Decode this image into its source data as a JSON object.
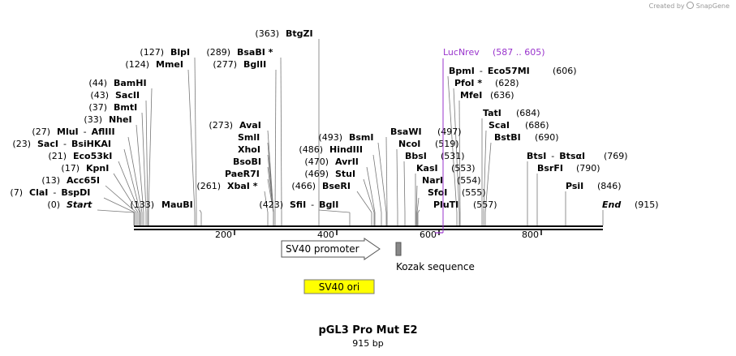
{
  "credit": {
    "prefix": "Created by",
    "brand": "SnapGene"
  },
  "title": "pGL3 Pro Mut E2",
  "subtitle": "915 bp",
  "ticks": [
    "200",
    "400",
    "600",
    "800"
  ],
  "sites": [
    {
      "pos": "(0)",
      "name": "Start",
      "italic": true
    },
    {
      "pos": "(7)",
      "name": "ClaI",
      "alt": "BspDI"
    },
    {
      "pos": "(13)",
      "name": "Acc65I"
    },
    {
      "pos": "(17)",
      "name": "KpnI"
    },
    {
      "pos": "(21)",
      "name": "Eco53kI"
    },
    {
      "pos": "(23)",
      "name": "SacI",
      "alt": "BsiHKAI"
    },
    {
      "pos": "(27)",
      "name": "MluI",
      "alt": "AflIII"
    },
    {
      "pos": "(33)",
      "name": "NheI"
    },
    {
      "pos": "(37)",
      "name": "BmtI"
    },
    {
      "pos": "(43)",
      "name": "SacII"
    },
    {
      "pos": "(44)",
      "name": "BamHI"
    },
    {
      "pos": "(124)",
      "name": "MmeI"
    },
    {
      "pos": "(127)",
      "name": "BlpI"
    },
    {
      "pos": "(133)",
      "name": "MauBI",
      "after": true
    },
    {
      "pos": "(261)",
      "name": "XbaI *"
    },
    {
      "pos": "(273)",
      "name": "AvaI"
    },
    {
      "name": "SmlI"
    },
    {
      "name": "XhoI"
    },
    {
      "name": "BsoBI"
    },
    {
      "name": "PaeR7I"
    },
    {
      "pos": "(277)",
      "name": "BglII"
    },
    {
      "pos": "(289)",
      "name": "BsaBI *"
    },
    {
      "pos": "(363)",
      "name": "BtgZI"
    },
    {
      "pos": "(423)",
      "name": "SfiI",
      "alt": "BglI"
    },
    {
      "pos": "(466)",
      "name": "BseRI"
    },
    {
      "pos": "(469)",
      "name": "StuI"
    },
    {
      "pos": "(470)",
      "name": "AvrII"
    },
    {
      "pos": "(486)",
      "name": "HindIII"
    },
    {
      "pos": "(493)",
      "name": "BsmI"
    },
    {
      "pos": "(497)",
      "name": "BsaWI"
    },
    {
      "pos": "(519)",
      "name": "NcoI"
    },
    {
      "pos": "(531)",
      "name": "BbsI"
    },
    {
      "pos": "(553)",
      "name": "KasI"
    },
    {
      "pos": "(554)",
      "name": "NarI"
    },
    {
      "pos": "(555)",
      "name": "SfoI"
    },
    {
      "pos": "(557)",
      "name": "PluTI"
    },
    {
      "pos": "(606)",
      "name": "BpmI",
      "alt": "Eco57MI"
    },
    {
      "pos": "(628)",
      "name": "PfoI *"
    },
    {
      "pos": "(636)",
      "name": "MfeI"
    },
    {
      "pos": "(684)",
      "name": "TatI"
    },
    {
      "pos": "(686)",
      "name": "ScaI"
    },
    {
      "pos": "(690)",
      "name": "BstBI"
    },
    {
      "pos": "(769)",
      "name": "BtsI",
      "alt": "BtsαI"
    },
    {
      "pos": "(790)",
      "name": "BsrFI"
    },
    {
      "pos": "(846)",
      "name": "PsiI"
    },
    {
      "pos": "(915)",
      "name": "End",
      "italic": true
    }
  ],
  "primer": {
    "name": "LucNrev",
    "range": "(587 .. 605)",
    "color": "#9933cc"
  },
  "features": {
    "promoter": {
      "label": "SV40 promoter"
    },
    "kozak": {
      "label": "Kozak sequence",
      "color": "#888888"
    },
    "ori": {
      "label": "SV40 ori",
      "color": "#ffff00"
    }
  }
}
